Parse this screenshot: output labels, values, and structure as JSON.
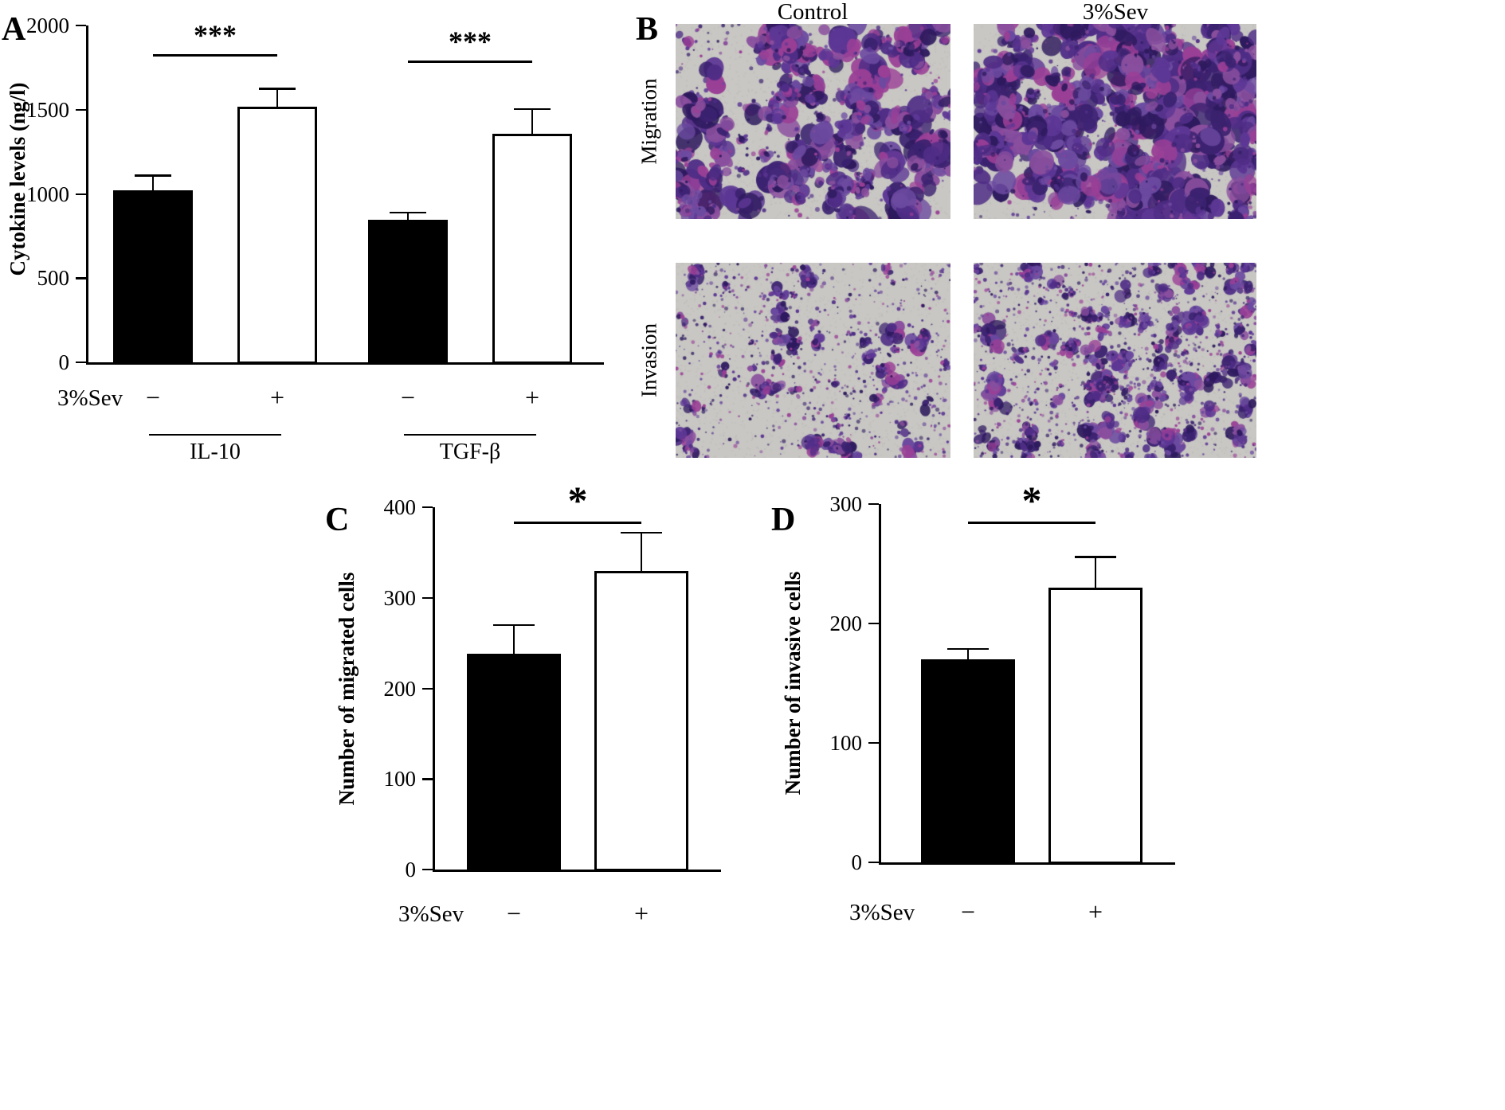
{
  "figure": {
    "background": "#ffffff",
    "panel_a": {
      "letter": "A"
    },
    "panel_b": {
      "letter": "B",
      "col_headers": [
        "Control",
        "3%Sev"
      ],
      "row_labels": [
        "Migration",
        "Invasion"
      ],
      "field_background": "#c8c7c3",
      "stain_colors": [
        "#3b2270",
        "#4f2d86",
        "#5d3795",
        "#2e1a5e",
        "#6b4aa0",
        "#8a4f9e",
        "#9a3f96"
      ]
    },
    "panel_c": {
      "letter": "C"
    },
    "panel_d": {
      "letter": "D"
    }
  },
  "chart_data": [
    {
      "panel": "A",
      "type": "bar",
      "title": "",
      "xlabel": "",
      "ylabel": "Cytokine levels (ng/l)",
      "ylim": [
        0,
        2000
      ],
      "yticks": [
        0,
        500,
        1000,
        1500,
        2000
      ],
      "condition_label": "3%Sev",
      "bars": [
        {
          "group": "IL-10",
          "condition": "−",
          "value": 1020,
          "error": 90,
          "fill": "#000000"
        },
        {
          "group": "IL-10",
          "condition": "+",
          "value": 1520,
          "error": 105,
          "fill": "#ffffff"
        },
        {
          "group": "TGF-β",
          "condition": "−",
          "value": 845,
          "error": 45,
          "fill": "#000000"
        },
        {
          "group": "TGF-β",
          "condition": "+",
          "value": 1355,
          "error": 150,
          "fill": "#ffffff"
        }
      ],
      "groups": [
        {
          "label": "IL-10",
          "bars": [
            0,
            1
          ]
        },
        {
          "label": "TGF-β",
          "bars": [
            2,
            3
          ]
        }
      ],
      "significance": [
        {
          "between": [
            0,
            1
          ],
          "label": "***"
        },
        {
          "between": [
            2,
            3
          ],
          "label": "***"
        }
      ]
    },
    {
      "panel": "C",
      "type": "bar",
      "title": "",
      "xlabel": "",
      "ylabel": "Number of migrated cells",
      "ylim": [
        0,
        400
      ],
      "yticks": [
        0,
        100,
        200,
        300,
        400
      ],
      "condition_label": "3%Sev",
      "bars": [
        {
          "condition": "−",
          "value": 238,
          "error": 32,
          "fill": "#000000"
        },
        {
          "condition": "+",
          "value": 330,
          "error": 42,
          "fill": "#ffffff"
        }
      ],
      "groups": [],
      "significance": [
        {
          "between": [
            0,
            1
          ],
          "label": "*"
        }
      ]
    },
    {
      "panel": "D",
      "type": "bar",
      "title": "",
      "xlabel": "",
      "ylabel": "Number of invasive cells",
      "ylim": [
        0,
        300
      ],
      "yticks": [
        0,
        100,
        200,
        300
      ],
      "condition_label": "3%Sev",
      "bars": [
        {
          "condition": "−",
          "value": 170,
          "error": 9,
          "fill": "#000000"
        },
        {
          "condition": "+",
          "value": 230,
          "error": 26,
          "fill": "#ffffff"
        }
      ],
      "groups": [],
      "significance": [
        {
          "between": [
            0,
            1
          ],
          "label": "*"
        }
      ]
    }
  ]
}
